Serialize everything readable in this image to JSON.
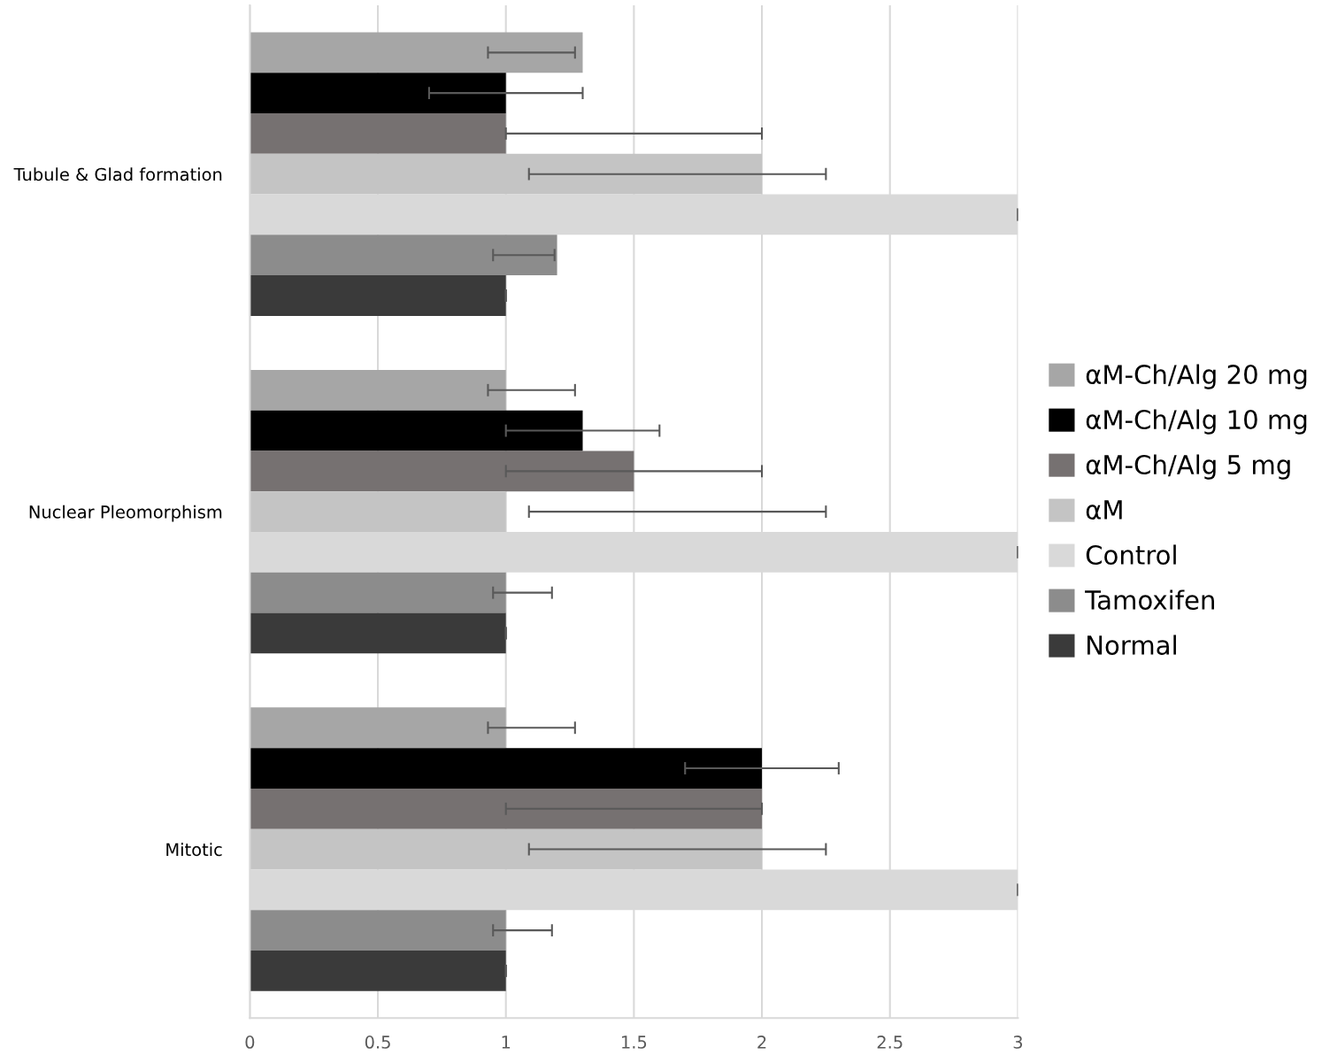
{
  "chart_data": {
    "type": "bar",
    "orientation": "horizontal",
    "categories": [
      "Tubule & Glad formation",
      "Nuclear Pleomorphism",
      "Mitotic"
    ],
    "xlim": [
      0,
      3
    ],
    "xticks": [
      0,
      0.5,
      1,
      1.5,
      2,
      2.5,
      3
    ],
    "grid": "x",
    "legend": "right",
    "series": [
      {
        "name": "αM-Ch/Alg 20 mg",
        "color": "#a6a6a6",
        "values": [
          1.3,
          1.0,
          1.0
        ],
        "errors": [
          [
            0.93,
            1.27
          ],
          [
            0.93,
            1.27
          ],
          [
            0.93,
            1.27
          ]
        ]
      },
      {
        "name": "αM-Ch/Alg 10 mg",
        "color": "#000000",
        "values": [
          1.0,
          1.3,
          2.0
        ],
        "errors": [
          [
            0.7,
            1.3
          ],
          [
            1.0,
            1.6
          ],
          [
            1.7,
            2.3
          ]
        ]
      },
      {
        "name": "αM-Ch/Alg 5 mg",
        "color": "#767171",
        "values": [
          1.0,
          1.5,
          2.0
        ],
        "errors": [
          [
            1.0,
            2.0
          ],
          [
            1.0,
            2.0
          ],
          [
            1.0,
            2.0
          ]
        ]
      },
      {
        "name": "αM",
        "color": "#c4c4c4",
        "values": [
          2.0,
          1.0,
          2.0
        ],
        "errors": [
          [
            1.09,
            2.25
          ],
          [
            1.09,
            2.25
          ],
          [
            1.09,
            2.25
          ]
        ]
      },
      {
        "name": "Control",
        "color": "#d9d9d9",
        "values": [
          3.0,
          3.0,
          3.0
        ],
        "errors": [
          [
            3.0,
            3.0
          ],
          [
            3.0,
            3.0
          ],
          [
            3.0,
            3.0
          ]
        ]
      },
      {
        "name": "Tamoxifen",
        "color": "#8c8c8c",
        "values": [
          1.2,
          1.0,
          1.0
        ],
        "errors": [
          [
            0.95,
            1.19
          ],
          [
            0.95,
            1.18
          ],
          [
            0.95,
            1.18
          ]
        ]
      },
      {
        "name": "Normal",
        "color": "#3a3a3a",
        "values": [
          1.0,
          1.0,
          1.0
        ],
        "errors": [
          [
            1.0,
            1.0
          ],
          [
            1.0,
            1.0
          ],
          [
            1.0,
            1.0
          ]
        ]
      }
    ]
  }
}
